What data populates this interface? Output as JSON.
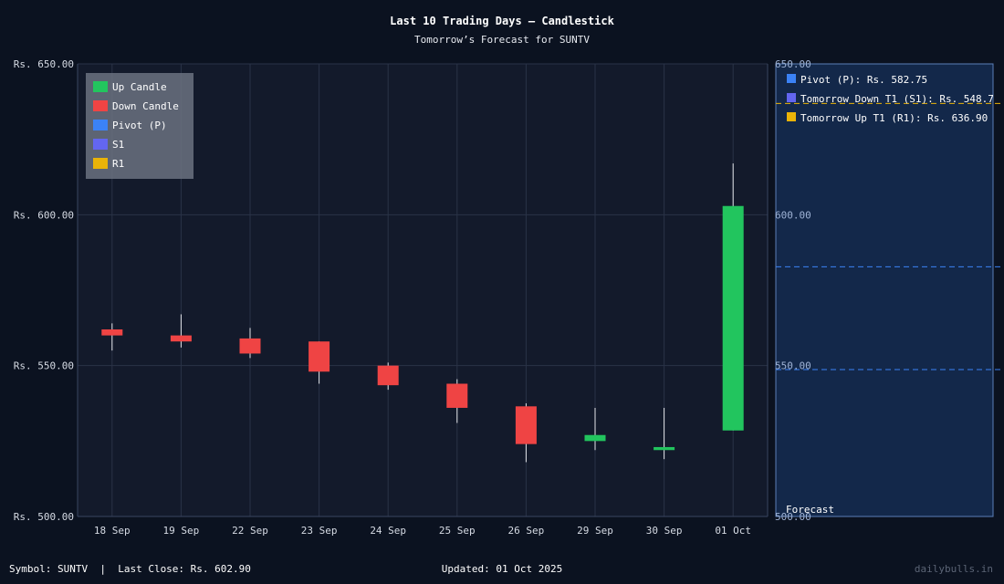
{
  "title": "Last 10 Trading Days – Candlestick",
  "subtitle": "Tomorrow’s Forecast for SUNTV",
  "legend": [
    "Up Candle",
    "Down Candle",
    "Pivot (P)",
    "S1",
    "R1"
  ],
  "forecast_legend": [
    "Pivot (P): Rs. 582.75",
    "Tomorrow Down T1 (S1): Rs. 548.7",
    "Tomorrow Up T1 (R1): Rs. 636.90"
  ],
  "forecast_label": "Forecast",
  "y_ticks_left": [
    "Rs. 500.00",
    "Rs. 550.00",
    "Rs. 600.00",
    "Rs. 650.00"
  ],
  "y_ticks_right": [
    "500.00",
    "550.00",
    "600.00",
    "650.00"
  ],
  "footer": {
    "left": "Symbol: SUNTV  |  Last Close: Rs. 602.90",
    "center": "Updated: 01 Oct 2025",
    "brand": "dailybulls.in"
  },
  "colors": {
    "up": "#22c55e",
    "down": "#ef4444",
    "pivot": "#3b82f6",
    "s1": "#6366f1",
    "r1": "#eab308",
    "plot_bg": "#131a2b",
    "forecast_bg": "#13284a",
    "grid": "#2a3347"
  },
  "chart_data": {
    "type": "candlestick",
    "title": "Last 10 Trading Days – Candlestick",
    "subtitle": "Tomorrow’s Forecast for SUNTV",
    "categories": [
      "18 Sep",
      "19 Sep",
      "22 Sep",
      "23 Sep",
      "24 Sep",
      "25 Sep",
      "26 Sep",
      "29 Sep",
      "30 Sep",
      "01 Oct"
    ],
    "ylim": [
      500,
      650
    ],
    "candles": [
      {
        "date": "18 Sep",
        "open": 562,
        "high": 564,
        "low": 555,
        "close": 560
      },
      {
        "date": "19 Sep",
        "open": 560,
        "high": 567,
        "low": 556,
        "close": 558
      },
      {
        "date": "22 Sep",
        "open": 559,
        "high": 562.5,
        "low": 552.5,
        "close": 554
      },
      {
        "date": "23 Sep",
        "open": 558,
        "high": 558,
        "low": 544,
        "close": 548
      },
      {
        "date": "24 Sep",
        "open": 550,
        "high": 551,
        "low": 542,
        "close": 543.5
      },
      {
        "date": "25 Sep",
        "open": 544,
        "high": 545.5,
        "low": 531,
        "close": 536
      },
      {
        "date": "26 Sep",
        "open": 536.5,
        "high": 537.5,
        "low": 518,
        "close": 524
      },
      {
        "date": "29 Sep",
        "open": 525,
        "high": 536,
        "low": 522,
        "close": 527
      },
      {
        "date": "30 Sep",
        "open": 522,
        "high": 536,
        "low": 519,
        "close": 523
      },
      {
        "date": "01 Oct",
        "open": 528.5,
        "high": 617,
        "low": 528.5,
        "close": 602.9
      }
    ],
    "forecast": {
      "pivot": 582.75,
      "s1": 548.7,
      "r1": 636.9
    },
    "grid": true,
    "legend_position": "top-left"
  }
}
